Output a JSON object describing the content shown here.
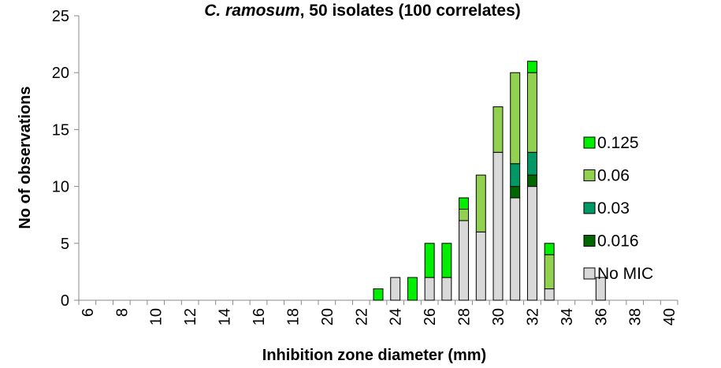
{
  "chart_data": {
    "type": "bar",
    "stacked": true,
    "title": {
      "italic": "C. ramosum",
      "rest": ", 50 isolates (100 correlates)"
    },
    "xlabel": "Inhibition zone diameter (mm)",
    "ylabel": "No of observations",
    "ylim": [
      0,
      25
    ],
    "yticks": [
      0,
      5,
      10,
      15,
      20,
      25
    ],
    "xlim": [
      6,
      40
    ],
    "xticks": [
      "6",
      "8",
      "10",
      "12",
      "14",
      "16",
      "18",
      "20",
      "22",
      "24",
      "26",
      "28",
      "30",
      "32",
      "34",
      "36",
      "38",
      "40"
    ],
    "grid": false,
    "legend_position": "right",
    "legend_order": [
      "0.125",
      "0.06",
      "0.03",
      "0.016",
      "No MIC"
    ],
    "categories": [
      23,
      24,
      25,
      26,
      27,
      28,
      29,
      30,
      31,
      32,
      33,
      36
    ],
    "series": [
      {
        "name": "No MIC",
        "color": "#d9d9d9",
        "values": [
          0,
          2,
          0,
          2,
          2,
          7,
          6,
          13,
          9,
          10,
          1,
          2
        ]
      },
      {
        "name": "0.016",
        "color": "#006600",
        "values": [
          0,
          0,
          0,
          0,
          0,
          0,
          0,
          0,
          1,
          1,
          0,
          0
        ]
      },
      {
        "name": "0.03",
        "color": "#009966",
        "values": [
          0,
          0,
          0,
          0,
          0,
          0,
          0,
          0,
          2,
          2,
          0,
          0
        ]
      },
      {
        "name": "0.06",
        "color": "#92d050",
        "values": [
          0,
          0,
          0,
          0,
          0,
          1,
          5,
          4,
          8,
          7,
          3,
          0
        ]
      },
      {
        "name": "0.125",
        "color": "#00ee00",
        "values": [
          1,
          0,
          2,
          3,
          3,
          1,
          0,
          0,
          0,
          1,
          1,
          0
        ]
      }
    ]
  }
}
